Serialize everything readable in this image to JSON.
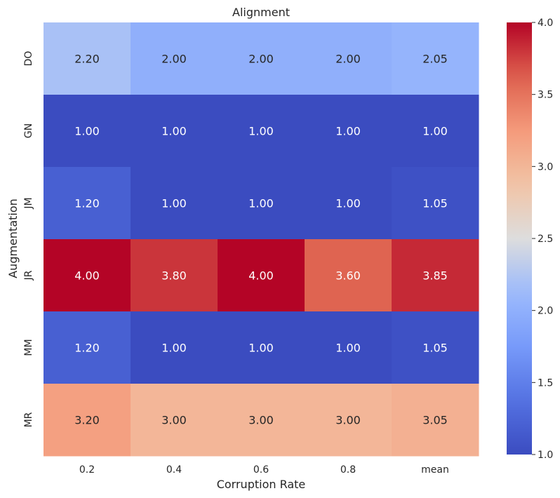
{
  "chart_data": {
    "type": "heatmap",
    "title": "Alignment",
    "xlabel": "Corruption Rate",
    "ylabel": "Augmentation",
    "x_categories": [
      "0.2",
      "0.4",
      "0.6",
      "0.8",
      "mean"
    ],
    "y_categories": [
      "DO",
      "GN",
      "JM",
      "JR",
      "MM",
      "MR"
    ],
    "values": [
      [
        2.2,
        2.0,
        2.0,
        2.0,
        2.05
      ],
      [
        1.0,
        1.0,
        1.0,
        1.0,
        1.0
      ],
      [
        1.2,
        1.0,
        1.0,
        1.0,
        1.05
      ],
      [
        4.0,
        3.8,
        4.0,
        3.6,
        3.85
      ],
      [
        1.2,
        1.0,
        1.0,
        1.0,
        1.05
      ],
      [
        3.2,
        3.0,
        3.0,
        3.0,
        3.05
      ]
    ],
    "cell_labels": [
      [
        "2.20",
        "2.00",
        "2.00",
        "2.00",
        "2.05"
      ],
      [
        "1.00",
        "1.00",
        "1.00",
        "1.00",
        "1.00"
      ],
      [
        "1.20",
        "1.00",
        "1.00",
        "1.00",
        "1.05"
      ],
      [
        "4.00",
        "3.80",
        "4.00",
        "3.60",
        "3.85"
      ],
      [
        "1.20",
        "1.00",
        "1.00",
        "1.00",
        "1.05"
      ],
      [
        "3.20",
        "3.00",
        "3.00",
        "3.00",
        "3.05"
      ]
    ],
    "colormap": "coolwarm",
    "colorbar": {
      "min": 1.0,
      "max": 4.0,
      "ticks": [
        1.0,
        1.5,
        2.0,
        2.5,
        3.0,
        3.5,
        4.0
      ],
      "tick_labels": [
        "1.0",
        "1.5",
        "2.0",
        "2.5",
        "3.0",
        "3.5",
        "4.0"
      ]
    }
  }
}
